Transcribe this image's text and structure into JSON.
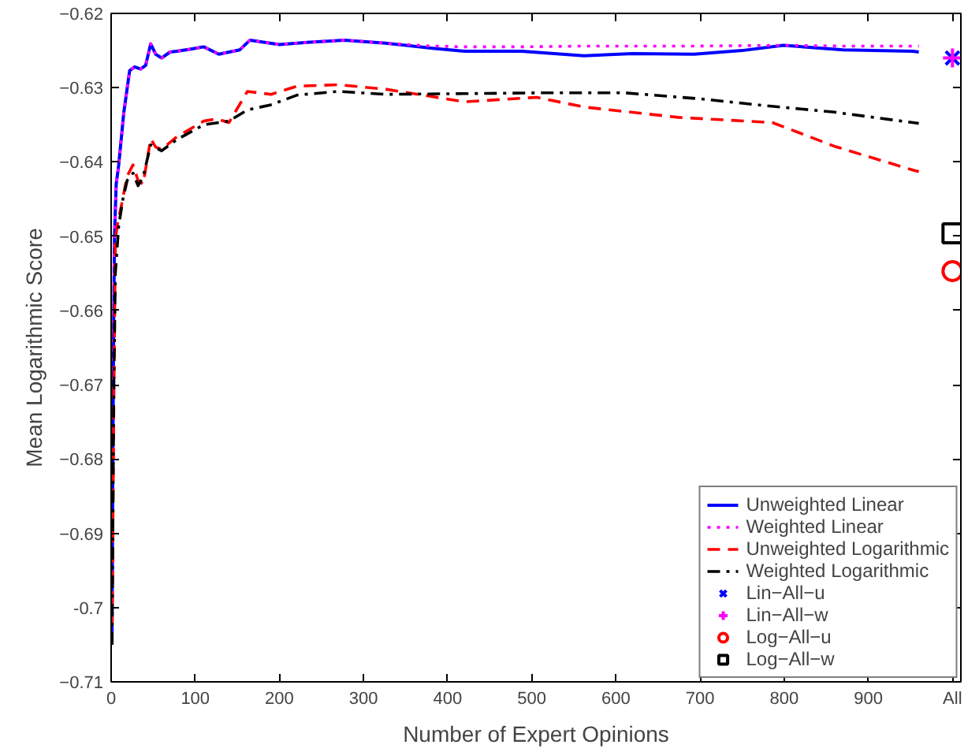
{
  "chart_data": {
    "type": "line",
    "xlabel": "Number of Expert Opinions",
    "ylabel": "Mean Logarithmic Score",
    "xlim": [
      0,
      1010
    ],
    "ylim": [
      -0.71,
      -0.62
    ],
    "xticks": [
      0,
      100,
      200,
      300,
      400,
      500,
      600,
      700,
      800,
      900,
      {
        "value": 1000,
        "label": "All"
      }
    ],
    "yticks": [
      -0.71,
      {
        "value": -0.7,
        "label": "-0.7"
      },
      -0.69,
      -0.68,
      -0.67,
      -0.66,
      -0.65,
      -0.64,
      -0.63,
      -0.62
    ],
    "grid": false,
    "legend": "bottom right",
    "series": [
      {
        "name": "Unweighted Linear",
        "line_style": "solid",
        "color": "#0000ff",
        "x": [
          1,
          2,
          3,
          4,
          6,
          9,
          15,
          22,
          28,
          35,
          41,
          47,
          53,
          60,
          70,
          78,
          95,
          110,
          128,
          153,
          165,
          200,
          233,
          277,
          326,
          382,
          420,
          488,
          562,
          620,
          693,
          750,
          799,
          870,
          953,
          960
        ],
        "values": [
          -0.705,
          -0.68,
          -0.662,
          -0.65,
          -0.643,
          -0.6404,
          -0.6334,
          -0.6277,
          -0.6272,
          -0.6275,
          -0.627,
          -0.6241,
          -0.6255,
          -0.626,
          -0.6252,
          -0.6251,
          -0.6248,
          -0.6245,
          -0.6255,
          -0.6249,
          -0.6236,
          -0.6242,
          -0.6239,
          -0.6236,
          -0.624,
          -0.6247,
          -0.6251,
          -0.6251,
          -0.6257,
          -0.6254,
          -0.6255,
          -0.625,
          -0.6243,
          -0.6249,
          -0.6251,
          -0.6252
        ]
      },
      {
        "name": "Weighted Linear",
        "line_style": "dotted",
        "color": "#ff00ff",
        "x": [
          1,
          2,
          3,
          4,
          6,
          9,
          15,
          22,
          28,
          35,
          41,
          47,
          53,
          60,
          70,
          78,
          95,
          110,
          128,
          153,
          165,
          200,
          233,
          277,
          326,
          382,
          420,
          488,
          562,
          693,
          799,
          870,
          960
        ],
        "values": [
          -0.705,
          -0.68,
          -0.662,
          -0.65,
          -0.643,
          -0.6404,
          -0.6334,
          -0.6277,
          -0.6272,
          -0.6275,
          -0.627,
          -0.6241,
          -0.6255,
          -0.626,
          -0.6252,
          -0.6251,
          -0.6248,
          -0.6245,
          -0.6255,
          -0.6249,
          -0.6236,
          -0.6242,
          -0.6239,
          -0.6236,
          -0.624,
          -0.6244,
          -0.6245,
          -0.6245,
          -0.6244,
          -0.6244,
          -0.6243,
          -0.6244,
          -0.6244
        ]
      },
      {
        "name": "Unweighted Logarithmic",
        "line_style": "dashed",
        "color": "#ff0000",
        "x": [
          1,
          2,
          3,
          5,
          8,
          12,
          19,
          26,
          32,
          38,
          47,
          53,
          60,
          78,
          95,
          110,
          125,
          140,
          162,
          190,
          221,
          270,
          326,
          420,
          506,
          562,
          674,
          786,
          860,
          953,
          960
        ],
        "values": [
          -0.705,
          -0.69,
          -0.675,
          -0.6504,
          -0.648,
          -0.646,
          -0.6419,
          -0.6404,
          -0.6425,
          -0.643,
          -0.6369,
          -0.638,
          -0.6383,
          -0.6366,
          -0.6355,
          -0.6345,
          -0.6342,
          -0.6347,
          -0.6305,
          -0.6309,
          -0.6298,
          -0.6296,
          -0.6302,
          -0.6319,
          -0.6313,
          -0.6326,
          -0.634,
          -0.6347,
          -0.6379,
          -0.6411,
          -0.6413
        ]
      },
      {
        "name": "Weighted Logarithmic",
        "line_style": "dashdot",
        "color": "#000000",
        "x": [
          1,
          2,
          3,
          5,
          9,
          14,
          19,
          26,
          32,
          38,
          47,
          60,
          78,
          110,
          140,
          162,
          190,
          221,
          270,
          326,
          420,
          506,
          611,
          700,
          767,
          860,
          953,
          960
        ],
        "values": [
          -0.705,
          -0.69,
          -0.672,
          -0.655,
          -0.6486,
          -0.645,
          -0.6425,
          -0.6415,
          -0.6432,
          -0.642,
          -0.6377,
          -0.6385,
          -0.637,
          -0.635,
          -0.6345,
          -0.633,
          -0.6323,
          -0.631,
          -0.6305,
          -0.6309,
          -0.6308,
          -0.6307,
          -0.6307,
          -0.6315,
          -0.6323,
          -0.6333,
          -0.6347,
          -0.6348
        ]
      },
      {
        "name": "Lin−All−u",
        "type": "scatter",
        "marker": "x",
        "color": "#0000ff",
        "x": [
          1000
        ],
        "values": [
          -0.626
        ]
      },
      {
        "name": "Lin−All−w",
        "type": "scatter",
        "marker": "cross",
        "color": "#ff00ff",
        "x": [
          1000
        ],
        "values": [
          -0.626
        ]
      },
      {
        "name": "Log−All−u",
        "type": "scatter",
        "marker": "circle",
        "color": "#ff0000",
        "x": [
          1000
        ],
        "values": [
          -0.6547
        ]
      },
      {
        "name": "Log−All−w",
        "type": "scatter",
        "marker": "square",
        "color": "#000000",
        "x": [
          1000
        ],
        "values": [
          -0.6496
        ]
      }
    ]
  }
}
